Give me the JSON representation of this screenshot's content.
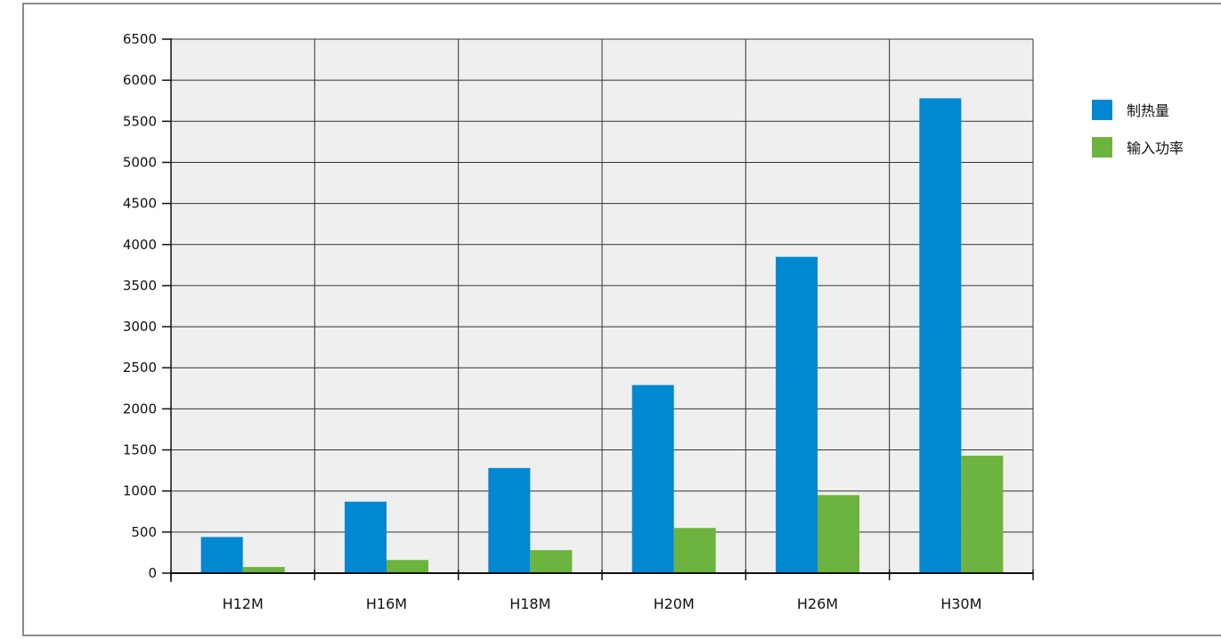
{
  "chart_data": {
    "type": "bar",
    "categories": [
      "H12M",
      "H16M",
      "H18M",
      "H20M",
      "H26M",
      "H30M"
    ],
    "series": [
      {
        "name": "制热量",
        "color": "#0288d1",
        "values": [
          440,
          870,
          1280,
          2290,
          3850,
          5780
        ]
      },
      {
        "name": "输入功率",
        "color": "#6db33f",
        "values": [
          75,
          160,
          280,
          550,
          950,
          1430
        ]
      }
    ],
    "ylim": [
      0,
      6500
    ],
    "yticks": [
      0,
      500,
      1000,
      1500,
      2000,
      2500,
      3000,
      3500,
      4000,
      4500,
      5000,
      5500,
      6000,
      6500
    ],
    "grid": true,
    "legend_position": "top-right",
    "title": "",
    "xlabel": "",
    "ylabel": "",
    "plot_background": "#efefef"
  }
}
